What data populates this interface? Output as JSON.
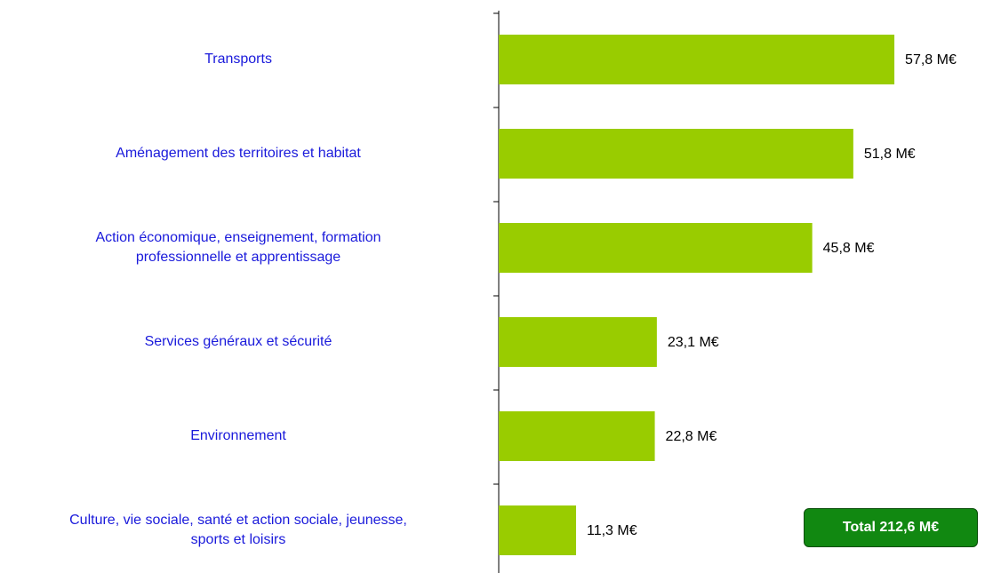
{
  "chart_data": {
    "type": "bar",
    "orientation": "horizontal",
    "categories": [
      "Transports",
      "Aménagement des territoires et habitat",
      "Action économique, enseignement, formation\nprofessionnelle et apprentissage",
      "Services généraux et sécurité",
      "Environnement",
      "Culture, vie sociale, santé et action sociale, jeunesse,\nsports et loisirs"
    ],
    "values": [
      57.8,
      51.8,
      45.8,
      23.1,
      22.8,
      11.3
    ],
    "value_labels": [
      "57,8 M€",
      "51,8 M€",
      "45,8 M€",
      "23,1 M€",
      "22,8 M€",
      "11,3 M€"
    ],
    "color": "#99cc00",
    "label_color": "#1a1adb",
    "xlim": [
      0,
      70
    ],
    "annotation": "Total 212,6 M€",
    "annotation_color": "#118811"
  }
}
